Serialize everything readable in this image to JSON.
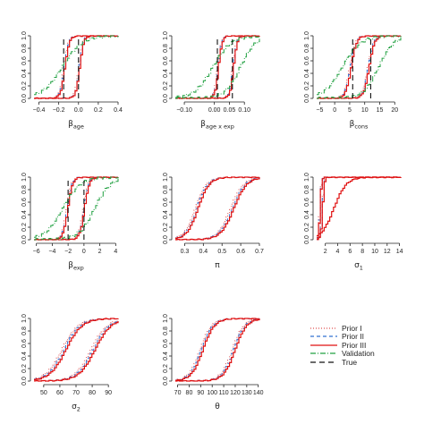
{
  "colors": {
    "prior1": "#e05050",
    "prior2": "#3070d0",
    "prior3": "#e01010",
    "validation": "#20a040",
    "true": "#111111",
    "axis": "#222222"
  },
  "legend": {
    "placement": "bottom-right",
    "entries": [
      {
        "key": "prior1",
        "label": "Prior I",
        "dash": "1,2"
      },
      {
        "key": "prior2",
        "label": "Prior II",
        "dash": "4,3"
      },
      {
        "key": "prior3",
        "label": "Prior III",
        "dash": ""
      },
      {
        "key": "validation",
        "label": "Validation",
        "dash": "6,2,1,2"
      },
      {
        "key": "true",
        "label": "True",
        "dash": "6,4"
      }
    ]
  },
  "chart_data": [
    {
      "id": "beta-age",
      "type": "line",
      "xlabel": "β_age",
      "xlim": [
        -0.45,
        0.4
      ],
      "xticks": [
        -0.4,
        -0.2,
        0.0,
        0.2,
        0.4
      ],
      "xtick_labels": [
        "−0.4",
        "−0.2",
        "0.0",
        "0.2",
        "0.4"
      ],
      "ylim": [
        0,
        1
      ],
      "yticks": [
        0.0,
        0.2,
        0.4,
        0.6,
        0.8,
        1.0
      ],
      "ytick_labels": [
        "0.0",
        "0.2",
        "0.4",
        "0.6",
        "0.8",
        "1.0"
      ],
      "true_values": [
        -0.15,
        0.0
      ],
      "cdfs": [
        {
          "center": -0.15,
          "scale": 0.022,
          "style": "group"
        },
        {
          "center": 0.0,
          "scale": 0.02,
          "style": "group"
        },
        {
          "center": -0.15,
          "scale": 0.1,
          "style": "validation"
        }
      ]
    },
    {
      "id": "beta-age-exp",
      "type": "line",
      "xlabel": "β_age x exp",
      "xlim": [
        -0.13,
        0.15
      ],
      "xticks": [
        -0.1,
        0.0,
        0.05,
        0.1
      ],
      "xtick_labels": [
        "−0.10",
        "0.00",
        "0.05",
        "0.10"
      ],
      "ylim": [
        0,
        1
      ],
      "yticks": [
        0.0,
        0.2,
        0.4,
        0.6,
        0.8,
        1.0
      ],
      "ytick_labels": [
        "0.0",
        "0.2",
        "0.4",
        "0.6",
        "0.8",
        "1.0"
      ],
      "true_values": [
        0.01,
        0.06
      ],
      "cdfs": [
        {
          "center": 0.01,
          "scale": 0.006,
          "style": "group"
        },
        {
          "center": 0.06,
          "scale": 0.006,
          "style": "group"
        },
        {
          "center": 0.0,
          "scale": 0.03,
          "style": "validation"
        },
        {
          "center": 0.09,
          "scale": 0.025,
          "style": "validation"
        }
      ]
    },
    {
      "id": "beta-cons",
      "type": "line",
      "xlabel": "β_cons",
      "xlim": [
        -6,
        22
      ],
      "xticks": [
        -5,
        0,
        5,
        10,
        15,
        20
      ],
      "xtick_labels": [
        "−5",
        "0",
        "5",
        "10",
        "15",
        "20"
      ],
      "ylim": [
        0,
        1
      ],
      "yticks": [
        0.0,
        0.2,
        0.4,
        0.6,
        0.8,
        1.0
      ],
      "ytick_labels": [
        "0.0",
        "0.2",
        "0.4",
        "0.6",
        "0.8",
        "1.0"
      ],
      "true_values": [
        6,
        12
      ],
      "cdfs": [
        {
          "center": 5,
          "scale": 0.9,
          "style": "group"
        },
        {
          "center": 11,
          "scale": 0.9,
          "style": "group"
        },
        {
          "center": 3,
          "scale": 3.0,
          "style": "validation"
        },
        {
          "center": 15,
          "scale": 2.5,
          "style": "validation"
        }
      ]
    },
    {
      "id": "beta-exp",
      "type": "line",
      "xlabel": "β_exp",
      "xlim": [
        -6.3,
        4.3
      ],
      "xticks": [
        -6,
        -4,
        -2,
        0,
        2,
        4
      ],
      "xtick_labels": [
        "−6",
        "−4",
        "−2",
        "0",
        "2",
        "4"
      ],
      "ylim": [
        0,
        1
      ],
      "yticks": [
        0.0,
        0.2,
        0.4,
        0.6,
        0.8,
        1.0
      ],
      "ytick_labels": [
        "0.0",
        "0.2",
        "0.4",
        "0.6",
        "0.8",
        "1.0"
      ],
      "true_values": [
        -2,
        0
      ],
      "cdfs": [
        {
          "center": -2.2,
          "scale": 0.3,
          "style": "group"
        },
        {
          "center": -0.1,
          "scale": 0.3,
          "style": "group"
        },
        {
          "center": -2.5,
          "scale": 1.1,
          "style": "validation"
        },
        {
          "center": 1.5,
          "scale": 1.0,
          "style": "validation"
        }
      ]
    },
    {
      "id": "pi",
      "type": "line",
      "xlabel": "π",
      "xlim": [
        0.25,
        0.7
      ],
      "xticks": [
        0.3,
        0.4,
        0.5,
        0.6,
        0.7
      ],
      "xtick_labels": [
        "0.3",
        "0.4",
        "0.5",
        "0.6",
        "0.7"
      ],
      "ylim": [
        0,
        1
      ],
      "yticks": [
        0.0,
        0.2,
        0.4,
        0.6,
        0.8,
        1.0
      ],
      "ytick_labels": [
        "0.0",
        "0.2",
        "0.4",
        "0.6",
        "0.8",
        "1.0"
      ],
      "true_values": [],
      "cdfs": [
        {
          "center": 0.36,
          "scale": 0.03,
          "style": "group"
        },
        {
          "center": 0.55,
          "scale": 0.035,
          "style": "group"
        }
      ]
    },
    {
      "id": "sigma-1",
      "type": "line",
      "xlabel": "σ_1",
      "xlim": [
        0.6,
        14.2
      ],
      "xticks": [
        2,
        4,
        6,
        8,
        10,
        12,
        14
      ],
      "xtick_labels": [
        "2",
        "4",
        "6",
        "8",
        "10",
        "12",
        "14"
      ],
      "ylim": [
        0,
        1
      ],
      "yticks": [
        0.0,
        0.2,
        0.4,
        0.6,
        0.8,
        1.0
      ],
      "ytick_labels": [
        "0.0",
        "0.2",
        "0.4",
        "0.6",
        "0.8",
        "1.0"
      ],
      "true_values": [],
      "cdfs": [
        {
          "center": 1.0,
          "scale": 0.12,
          "style": "group"
        },
        {
          "center": 1.4,
          "scale": 0.15,
          "style": "group"
        },
        {
          "center": 3.5,
          "scale": 1.0,
          "style": "prior3-only"
        }
      ]
    },
    {
      "id": "sigma-2",
      "type": "line",
      "xlabel": "σ_2",
      "xlim": [
        44,
        96
      ],
      "xticks": [
        50,
        60,
        70,
        80,
        90
      ],
      "xtick_labels": [
        "50",
        "60",
        "70",
        "80",
        "90"
      ],
      "ylim": [
        0,
        1
      ],
      "yticks": [
        0.0,
        0.2,
        0.4,
        0.6,
        0.8,
        1.0
      ],
      "ytick_labels": [
        "0.0",
        "0.2",
        "0.4",
        "0.6",
        "0.8",
        "1.0"
      ],
      "true_values": [],
      "cdfs": [
        {
          "center": 62,
          "scale": 5.0,
          "style": "group"
        },
        {
          "center": 80,
          "scale": 5.0,
          "style": "group"
        }
      ]
    },
    {
      "id": "theta",
      "type": "line",
      "xlabel": "θ",
      "xlim": [
        68,
        141
      ],
      "xticks": [
        70,
        80,
        90,
        100,
        110,
        120,
        130,
        140
      ],
      "xtick_labels": [
        "70",
        "80",
        "90",
        "100",
        "110",
        "120",
        "130",
        "140"
      ],
      "ylim": [
        0,
        1
      ],
      "yticks": [
        0.0,
        0.2,
        0.4,
        0.6,
        0.8,
        1.0
      ],
      "ytick_labels": [
        "0.0",
        "0.2",
        "0.4",
        "0.6",
        "0.8",
        "1.0"
      ],
      "true_values": [],
      "cdfs": [
        {
          "center": 90,
          "scale": 5.0,
          "style": "group"
        },
        {
          "center": 118,
          "scale": 5.0,
          "style": "group"
        }
      ]
    }
  ]
}
